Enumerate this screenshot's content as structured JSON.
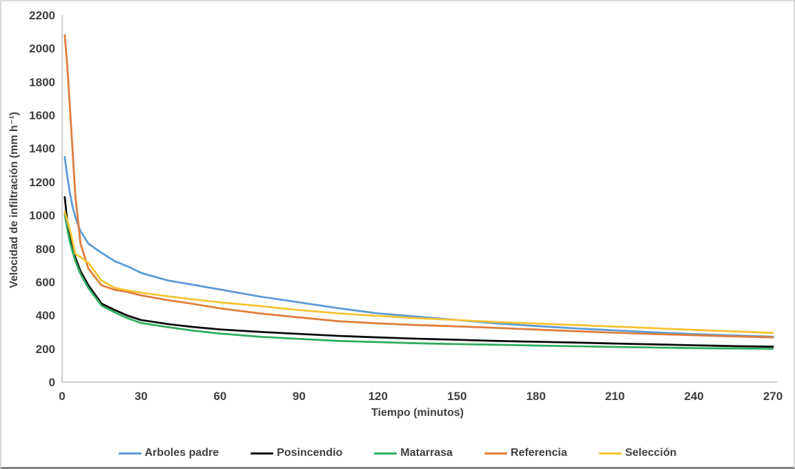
{
  "chart": {
    "y_axis_title": "Velocidad de infiltración (mm h⁻¹)",
    "x_axis_title": "Tiempo (minutos)",
    "axis_line_color": "#bfbfbf",
    "label_color": "#3f3f3f",
    "background_color": "#ffffff"
  },
  "chart_data": {
    "type": "line",
    "title": "",
    "xlabel": "Tiempo (minutos)",
    "ylabel": "Velocidad de infiltración (mm h⁻¹)",
    "xlim": [
      0,
      270
    ],
    "ylim": [
      0,
      2200
    ],
    "x_ticks": [
      0,
      30,
      60,
      90,
      120,
      150,
      180,
      210,
      240,
      270
    ],
    "y_ticks": [
      0,
      200,
      400,
      600,
      800,
      1000,
      1200,
      1400,
      1600,
      1800,
      2000,
      2200
    ],
    "grid": false,
    "legend_position": "bottom",
    "x": [
      1,
      2,
      3,
      4,
      5,
      7,
      10,
      15,
      20,
      25,
      30,
      40,
      50,
      60,
      75,
      90,
      105,
      120,
      135,
      150,
      165,
      180,
      195,
      210,
      225,
      240,
      255,
      270
    ],
    "series": [
      {
        "name": "Arboles padre",
        "color": "#5b9bd5",
        "values": [
          1350,
          1230,
          1130,
          1050,
          990,
          905,
          830,
          775,
          725,
          693,
          655,
          610,
          583,
          555,
          513,
          478,
          443,
          412,
          392,
          372,
          352,
          336,
          322,
          310,
          298,
          288,
          280,
          272
        ]
      },
      {
        "name": "Posincendio",
        "color": "#0a0a0a",
        "values": [
          1110,
          960,
          865,
          800,
          748,
          665,
          580,
          470,
          432,
          398,
          372,
          348,
          330,
          316,
          301,
          289,
          277,
          268,
          260,
          254,
          247,
          242,
          237,
          231,
          226,
          221,
          216,
          212
        ]
      },
      {
        "name": "Matarrasa",
        "color": "#2eac61",
        "values": [
          1005,
          915,
          840,
          780,
          728,
          648,
          565,
          458,
          418,
          382,
          355,
          330,
          308,
          291,
          272,
          259,
          247,
          240,
          233,
          228,
          224,
          219,
          215,
          211,
          207,
          204,
          202,
          200
        ]
      },
      {
        "name": "Referencia",
        "color": "#df7d3b",
        "values": [
          2080,
          1890,
          1640,
          1380,
          1120,
          830,
          680,
          580,
          553,
          540,
          520,
          492,
          468,
          442,
          412,
          388,
          365,
          352,
          342,
          334,
          325,
          315,
          305,
          296,
          288,
          281,
          274,
          268
        ]
      },
      {
        "name": "Selección",
        "color": "#f6c331",
        "values": [
          1020,
          968,
          910,
          840,
          768,
          750,
          715,
          608,
          565,
          549,
          536,
          515,
          496,
          478,
          456,
          432,
          412,
          397,
          383,
          372,
          360,
          351,
          342,
          333,
          323,
          313,
          304,
          295
        ]
      }
    ]
  }
}
